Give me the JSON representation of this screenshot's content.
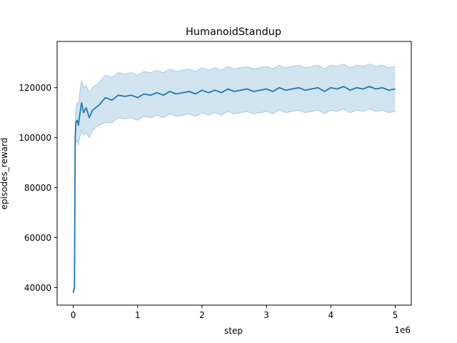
{
  "chart_data": {
    "type": "line",
    "title": "HumanoidStandup",
    "xlabel": "step",
    "ylabel": "episodes_reward",
    "x_offset_text": "1e6",
    "xlim": [
      -0.25,
      5.25
    ],
    "ylim": [
      33000,
      138500
    ],
    "x_ticks": [
      0,
      1,
      2,
      3,
      4,
      5
    ],
    "x_tick_labels": [
      "0",
      "1",
      "2",
      "3",
      "4",
      "5"
    ],
    "y_ticks": [
      40000,
      60000,
      80000,
      100000,
      120000
    ],
    "y_tick_labels": [
      "40000",
      "60000",
      "80000",
      "100000",
      "120000"
    ],
    "grid": false,
    "colors": {
      "line": "#1f77b4",
      "band": "#1f77b4",
      "band_opacity": 0.2,
      "band_edge_opacity": 0.3
    },
    "series": [
      {
        "x": [
          0.0,
          0.02,
          0.03,
          0.04,
          0.06,
          0.08,
          0.1,
          0.13,
          0.16,
          0.2,
          0.25,
          0.3,
          0.35,
          0.4,
          0.5,
          0.6,
          0.7,
          0.8,
          0.9,
          1.0,
          1.1,
          1.2,
          1.3,
          1.4,
          1.5,
          1.6,
          1.7,
          1.8,
          1.9,
          2.0,
          2.1,
          2.2,
          2.3,
          2.4,
          2.5,
          2.6,
          2.7,
          2.8,
          2.9,
          3.0,
          3.1,
          3.2,
          3.3,
          3.4,
          3.5,
          3.6,
          3.7,
          3.8,
          3.9,
          4.0,
          4.1,
          4.2,
          4.3,
          4.4,
          4.5,
          4.6,
          4.7,
          4.8,
          4.9,
          5.0
        ],
        "mean": [
          38000,
          40000,
          100000,
          106000,
          107000,
          105000,
          109000,
          114000,
          110000,
          112000,
          108000,
          111000,
          112000,
          113000,
          116000,
          115000,
          117000,
          116500,
          117000,
          116000,
          117500,
          117000,
          118000,
          117000,
          118500,
          117500,
          118000,
          118500,
          117500,
          119000,
          118000,
          119000,
          118000,
          119500,
          118500,
          119000,
          119500,
          118500,
          119000,
          119500,
          118500,
          120000,
          119000,
          119500,
          120000,
          119000,
          119500,
          120000,
          118500,
          120000,
          119500,
          120500,
          119000,
          120000,
          119500,
          120500,
          119500,
          120000,
          119000,
          119500
        ],
        "lower": [
          37500,
          39000,
          93000,
          98000,
          99000,
          97000,
          100000,
          103000,
          101000,
          102000,
          100000,
          103000,
          104000,
          105000,
          106000,
          106000,
          108000,
          107500,
          108000,
          107000,
          108500,
          108000,
          109000,
          108000,
          109500,
          108500,
          109000,
          109500,
          108500,
          110000,
          109000,
          110000,
          109000,
          110500,
          109500,
          110000,
          110500,
          109500,
          110000,
          110500,
          109500,
          111000,
          110000,
          110500,
          111000,
          110000,
          110500,
          111000,
          109500,
          111000,
          110500,
          111500,
          110000,
          111000,
          110500,
          111500,
          110500,
          111000,
          110000,
          110500
        ],
        "upper": [
          39000,
          41000,
          105000,
          112000,
          114000,
          113000,
          118000,
          123000,
          120000,
          121000,
          118000,
          120000,
          121000,
          122000,
          125000,
          124000,
          126000,
          125500,
          126000,
          125000,
          126500,
          126000,
          127000,
          126000,
          127500,
          126500,
          127000,
          127500,
          126500,
          128000,
          127000,
          128000,
          127000,
          128500,
          127500,
          128000,
          128500,
          127500,
          128000,
          128500,
          127500,
          129000,
          128000,
          128500,
          129000,
          128000,
          128500,
          129000,
          127500,
          129000,
          128500,
          129500,
          128000,
          129000,
          128500,
          129500,
          128500,
          129000,
          128000,
          128500
        ]
      }
    ]
  }
}
